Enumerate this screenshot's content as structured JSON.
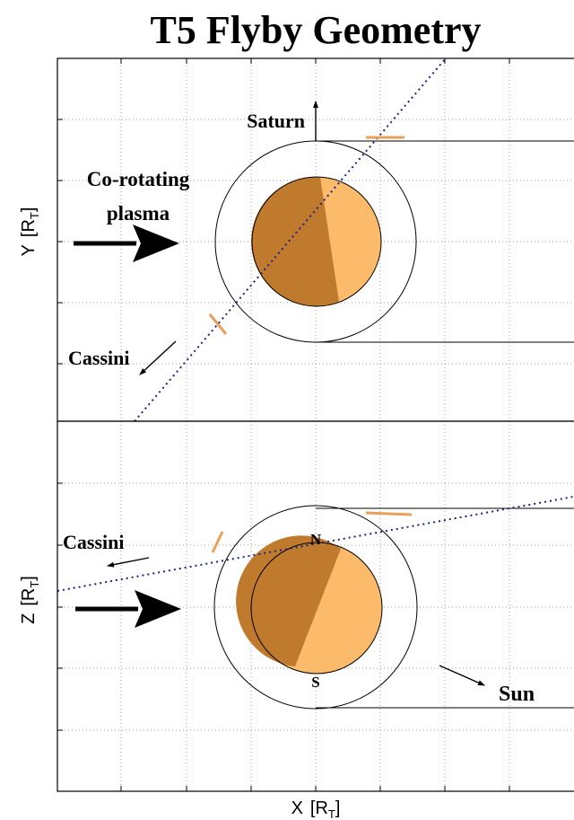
{
  "title": "T5 Flyby Geometry",
  "axes": {
    "xlabel_main": "X",
    "xlabel_unit": "[R",
    "xlabel_sub": "T",
    "xlabel_close": "]",
    "ylabel_top_main": "Y",
    "ylabel_top_unit": "[R",
    "ylabel_top_sub": "T",
    "ylabel_top_close": "]",
    "ylabel_bottom_main": "Z",
    "ylabel_bottom_unit": "[R",
    "ylabel_bottom_sub": "T",
    "ylabel_bottom_close": "]"
  },
  "top_panel": {
    "saturn_label": "Saturn",
    "plasma_label_1": "Co-rotating",
    "plasma_label_2": "plasma",
    "cassini_label": "Cassini"
  },
  "bottom_panel": {
    "cassini_label": "Cassini",
    "north_label": "N",
    "south_label": "S",
    "sun_label": "Sun"
  },
  "colors": {
    "titan_dark": "#c07a2e",
    "titan_light": "#fbbb6a",
    "trajectory": "#1a237e",
    "marker": "#e8a05a",
    "grid": "#9a9a9a"
  }
}
